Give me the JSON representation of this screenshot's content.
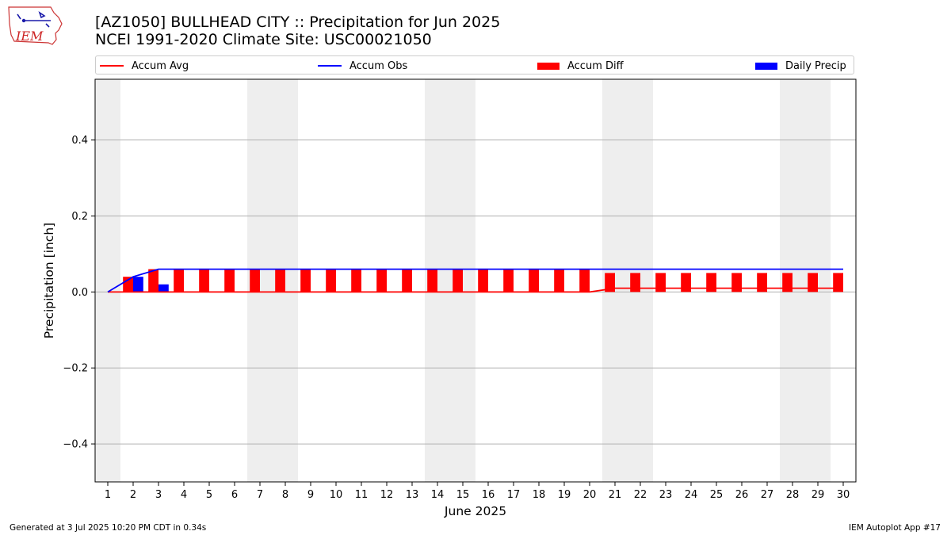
{
  "header": {
    "title_line1": "[AZ1050] BULLHEAD CITY :: Precipitation for Jun 2025",
    "title_line2": "NCEI 1991-2020 Climate Site: USC00021050"
  },
  "logo": {
    "text": "IEM",
    "icon": "iem-iowa-map-logo"
  },
  "legend": [
    {
      "label": "Accum Avg",
      "kind": "line",
      "color": "#ff0000"
    },
    {
      "label": "Accum Obs",
      "kind": "line",
      "color": "#0000ff"
    },
    {
      "label": "Accum Diff",
      "kind": "bar",
      "color": "#ff0000"
    },
    {
      "label": "Daily Precip",
      "kind": "bar",
      "color": "#0000ff"
    }
  ],
  "footer": {
    "left": "Generated at 3 Jul 2025 10:20 PM CDT in 0.34s",
    "right": "IEM Autoplot App #17"
  },
  "chart_data": {
    "type": "bar",
    "xlabel": "June 2025",
    "ylabel": "Precipitation [inch]",
    "xlim": [
      0.5,
      30.5
    ],
    "ylim": [
      -0.5,
      0.56
    ],
    "yticks": [
      -0.4,
      -0.2,
      0.0,
      0.2,
      0.4
    ],
    "ytick_labels": [
      "−0.4",
      "−0.2",
      "0.0",
      "0.2",
      "0.4"
    ],
    "grid": "horizontal",
    "legend_position": "top",
    "weekend_shading": [
      [
        0.5,
        1.5
      ],
      [
        6.5,
        8.5
      ],
      [
        13.5,
        15.5
      ],
      [
        20.5,
        22.5
      ],
      [
        27.5,
        29.5
      ]
    ],
    "shade_color": "#eeeeee",
    "x": [
      1,
      2,
      3,
      4,
      5,
      6,
      7,
      8,
      9,
      10,
      11,
      12,
      13,
      14,
      15,
      16,
      17,
      18,
      19,
      20,
      21,
      22,
      23,
      24,
      25,
      26,
      27,
      28,
      29,
      30
    ],
    "series": [
      {
        "name": "Accum Avg",
        "kind": "line",
        "color": "#ff0000",
        "values": [
          0,
          0,
          0,
          0,
          0,
          0,
          0,
          0,
          0,
          0,
          0,
          0,
          0,
          0,
          0,
          0,
          0,
          0,
          0,
          0,
          0.01,
          0.01,
          0.01,
          0.01,
          0.01,
          0.01,
          0.01,
          0.01,
          0.01,
          0.01
        ]
      },
      {
        "name": "Accum Obs",
        "kind": "line",
        "color": "#0000ff",
        "values": [
          0,
          0.04,
          0.06,
          0.06,
          0.06,
          0.06,
          0.06,
          0.06,
          0.06,
          0.06,
          0.06,
          0.06,
          0.06,
          0.06,
          0.06,
          0.06,
          0.06,
          0.06,
          0.06,
          0.06,
          0.06,
          0.06,
          0.06,
          0.06,
          0.06,
          0.06,
          0.06,
          0.06,
          0.06,
          0.06
        ]
      },
      {
        "name": "Accum Diff",
        "kind": "bar",
        "color": "#ff0000",
        "values": [
          0,
          0.04,
          0.06,
          0.06,
          0.06,
          0.06,
          0.06,
          0.06,
          0.06,
          0.06,
          0.06,
          0.06,
          0.06,
          0.06,
          0.06,
          0.06,
          0.06,
          0.06,
          0.06,
          0.06,
          0.05,
          0.05,
          0.05,
          0.05,
          0.05,
          0.05,
          0.05,
          0.05,
          0.05,
          0.05
        ]
      },
      {
        "name": "Daily Precip",
        "kind": "bar",
        "color": "#0000ff",
        "values": [
          0,
          0.04,
          0.02,
          0,
          0,
          0,
          0,
          0,
          0,
          0,
          0,
          0,
          0,
          0,
          0,
          0,
          0,
          0,
          0,
          0,
          0,
          0,
          0,
          0,
          0,
          0,
          0,
          0,
          0,
          0
        ]
      }
    ]
  }
}
